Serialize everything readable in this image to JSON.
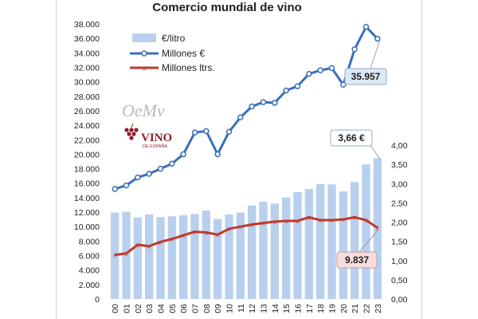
{
  "chart_data": {
    "type": "bar+line",
    "title": "Comercio mundial de vino",
    "categories": [
      "00",
      "01",
      "02",
      "03",
      "04",
      "05",
      "06",
      "07",
      "08",
      "09",
      "10",
      "11",
      "12",
      "13",
      "14",
      "15",
      "16",
      "17",
      "18",
      "19",
      "20",
      "21",
      "22",
      "23"
    ],
    "series": [
      {
        "name": "€/litro",
        "chart": "bar",
        "axis": "right",
        "color": "#b8d0ee",
        "values": [
          2.25,
          2.27,
          2.12,
          2.2,
          2.13,
          2.15,
          2.18,
          2.21,
          2.3,
          2.08,
          2.2,
          2.25,
          2.43,
          2.53,
          2.48,
          2.64,
          2.78,
          2.86,
          2.99,
          2.98,
          2.8,
          3.04,
          3.5,
          3.66
        ]
      },
      {
        "name": "Millones €",
        "chart": "line",
        "axis": "left",
        "color": "#3a6fba",
        "values": [
          15200,
          15700,
          16800,
          17300,
          18000,
          18700,
          20000,
          23000,
          23200,
          20000,
          23100,
          25100,
          26600,
          27200,
          27100,
          28800,
          29400,
          31100,
          31600,
          31900,
          29600,
          34500,
          37600,
          35957
        ]
      },
      {
        "name": "Millones ltrs.",
        "chart": "line",
        "axis": "left",
        "color": "#c0392b",
        "values": [
          6100,
          6300,
          7500,
          7300,
          7900,
          8300,
          8800,
          9300,
          9200,
          8900,
          9700,
          10000,
          10300,
          10500,
          10700,
          10800,
          10800,
          11300,
          10900,
          10900,
          11000,
          11300,
          10900,
          9837
        ]
      }
    ],
    "y_left": {
      "ylim": [
        0,
        38000
      ],
      "ticks": [
        "0",
        "2.000",
        "4.000",
        "6.000",
        "8.000",
        "10.000",
        "12.000",
        "14.000",
        "16.000",
        "18.000",
        "20.000",
        "22.000",
        "24.000",
        "26.000",
        "28.000",
        "30.000",
        "32.000",
        "34.000",
        "36.000",
        "38.000"
      ]
    },
    "y_right": {
      "ylim": [
        0,
        4.0
      ],
      "ticks": [
        "0,00",
        "0,50",
        "1,00",
        "1,50",
        "2,00",
        "2,50",
        "3,00",
        "3,50",
        "4,00"
      ]
    },
    "legend_position": "top-left",
    "grid": false,
    "annotations": [
      {
        "text": "35.957",
        "series": "Millones €",
        "category": "23"
      },
      {
        "text": "3,66 €",
        "series": "€/litro",
        "category": "23"
      },
      {
        "text": "9.837",
        "series": "Millones ltrs.",
        "category": "23"
      }
    ]
  },
  "logos": {
    "oemv": "OeMv",
    "vino_word": "VINO",
    "vino_sub": "DE ESPAÑA"
  }
}
